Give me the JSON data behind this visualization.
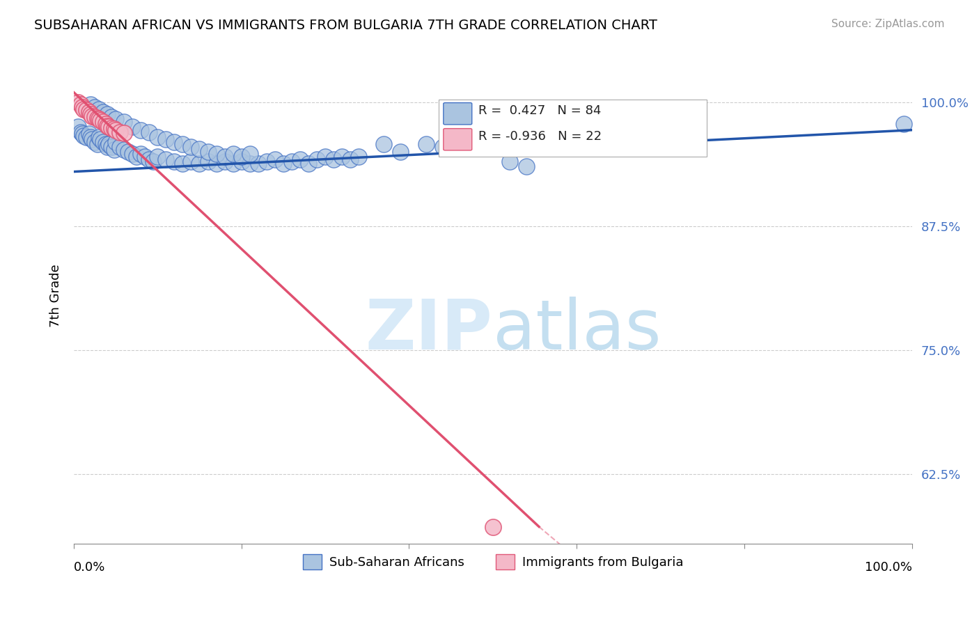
{
  "title": "SUBSAHARAN AFRICAN VS IMMIGRANTS FROM BULGARIA 7TH GRADE CORRELATION CHART",
  "source": "Source: ZipAtlas.com",
  "ylabel": "7th Grade",
  "ytick_labels": [
    "62.5%",
    "75.0%",
    "87.5%",
    "100.0%"
  ],
  "ytick_values": [
    0.625,
    0.75,
    0.875,
    1.0
  ],
  "xlim": [
    0.0,
    1.0
  ],
  "ylim": [
    0.555,
    1.055
  ],
  "legend_blue_label": "Sub-Saharan Africans",
  "legend_pink_label": "Immigrants from Bulgaria",
  "blue_R": 0.427,
  "blue_N": 84,
  "pink_R": -0.936,
  "pink_N": 22,
  "blue_color": "#aac4e0",
  "blue_edge_color": "#4472c4",
  "pink_color": "#f4b8c8",
  "pink_edge_color": "#e05878",
  "blue_line_color": "#2255aa",
  "pink_line_color": "#e05070",
  "blue_scatter_x": [
    0.005,
    0.008,
    0.01,
    0.012,
    0.015,
    0.018,
    0.02,
    0.022,
    0.025,
    0.028,
    0.03,
    0.032,
    0.035,
    0.038,
    0.04,
    0.042,
    0.045,
    0.048,
    0.05,
    0.055,
    0.06,
    0.065,
    0.07,
    0.075,
    0.08,
    0.085,
    0.09,
    0.095,
    0.1,
    0.11,
    0.12,
    0.13,
    0.14,
    0.15,
    0.16,
    0.17,
    0.18,
    0.19,
    0.2,
    0.21,
    0.22,
    0.23,
    0.24,
    0.25,
    0.26,
    0.27,
    0.28,
    0.29,
    0.3,
    0.31,
    0.32,
    0.33,
    0.34,
    0.02,
    0.025,
    0.03,
    0.035,
    0.04,
    0.045,
    0.05,
    0.06,
    0.07,
    0.08,
    0.09,
    0.1,
    0.11,
    0.12,
    0.13,
    0.14,
    0.15,
    0.16,
    0.17,
    0.18,
    0.19,
    0.2,
    0.21,
    0.37,
    0.39,
    0.42,
    0.44,
    0.52,
    0.54,
    0.74,
    0.99
  ],
  "blue_scatter_y": [
    0.975,
    0.97,
    0.968,
    0.966,
    0.965,
    0.968,
    0.965,
    0.963,
    0.96,
    0.958,
    0.965,
    0.963,
    0.96,
    0.958,
    0.955,
    0.958,
    0.955,
    0.952,
    0.96,
    0.955,
    0.952,
    0.95,
    0.948,
    0.945,
    0.948,
    0.945,
    0.942,
    0.94,
    0.945,
    0.942,
    0.94,
    0.938,
    0.94,
    0.938,
    0.94,
    0.938,
    0.94,
    0.938,
    0.94,
    0.938,
    0.938,
    0.94,
    0.942,
    0.938,
    0.94,
    0.942,
    0.938,
    0.942,
    0.945,
    0.942,
    0.945,
    0.942,
    0.945,
    0.998,
    0.995,
    0.993,
    0.99,
    0.988,
    0.985,
    0.983,
    0.98,
    0.975,
    0.972,
    0.97,
    0.965,
    0.963,
    0.96,
    0.958,
    0.955,
    0.953,
    0.95,
    0.948,
    0.945,
    0.948,
    0.945,
    0.948,
    0.958,
    0.95,
    0.958,
    0.955,
    0.94,
    0.935,
    0.965,
    0.978
  ],
  "pink_scatter_x": [
    0.005,
    0.008,
    0.01,
    0.012,
    0.015,
    0.018,
    0.02,
    0.022,
    0.025,
    0.028,
    0.03,
    0.032,
    0.035,
    0.038,
    0.04,
    0.042,
    0.045,
    0.048,
    0.05,
    0.055,
    0.06,
    0.5
  ],
  "pink_scatter_y": [
    1.0,
    0.998,
    0.995,
    0.993,
    0.992,
    0.99,
    0.988,
    0.986,
    0.985,
    0.984,
    0.983,
    0.982,
    0.98,
    0.978,
    0.976,
    0.975,
    0.974,
    0.973,
    0.972,
    0.97,
    0.969,
    0.572
  ],
  "blue_trendline": [
    0.0,
    1.0,
    0.93,
    0.972
  ],
  "pink_trendline": [
    0.0,
    0.555,
    1.01,
    0.572
  ],
  "pink_trendline_ext": [
    0.555,
    0.6,
    0.572,
    0.54
  ]
}
